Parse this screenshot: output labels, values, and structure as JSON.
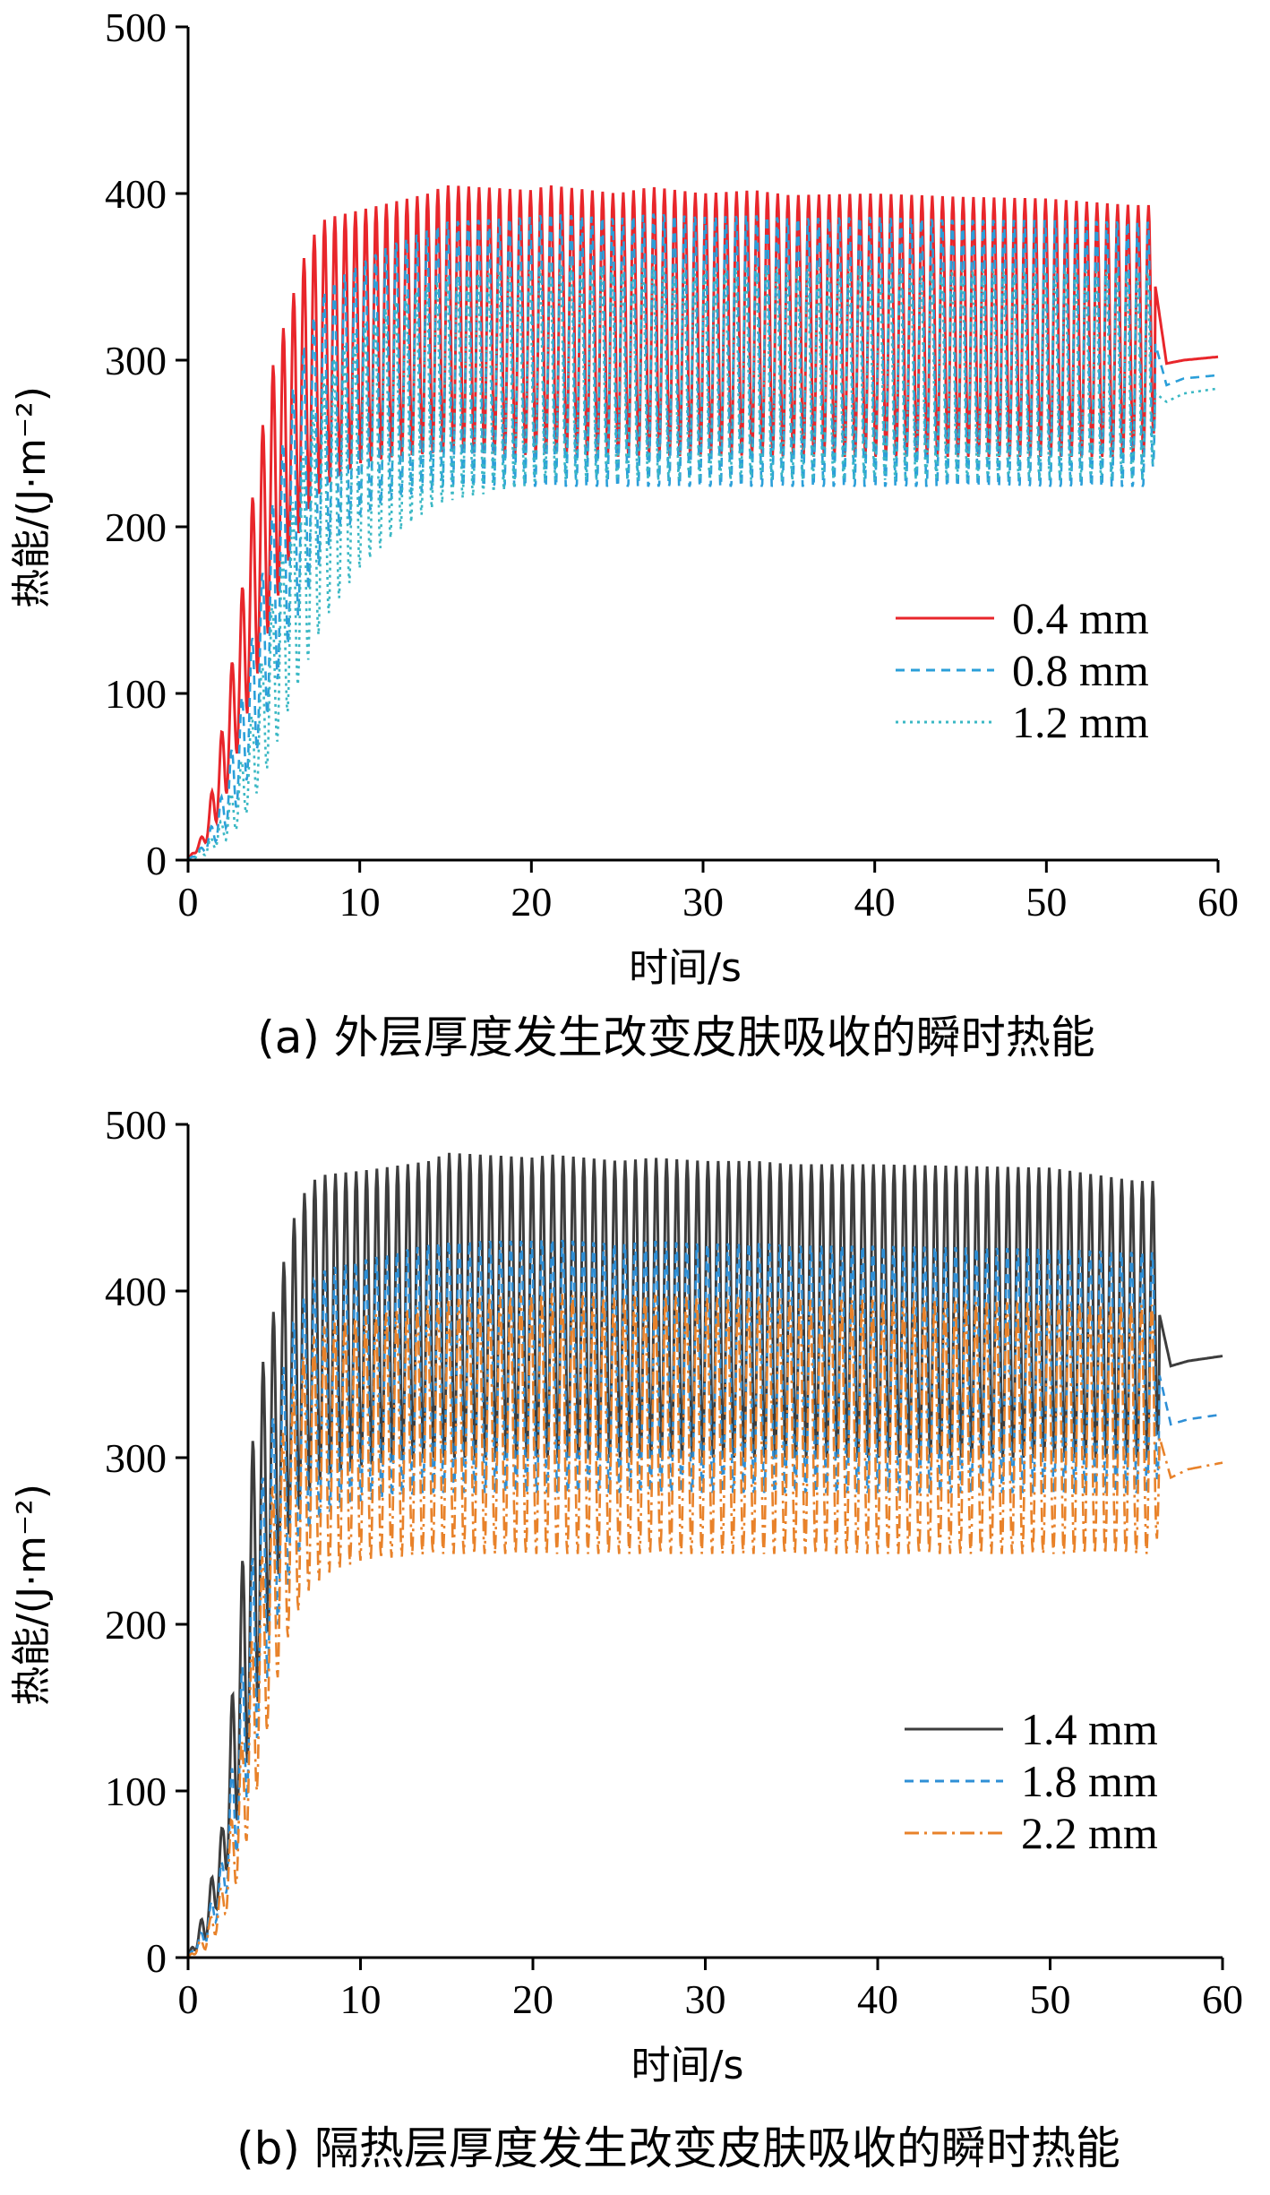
{
  "chart_data": [
    {
      "type": "line",
      "caption": "(a) 外层厚度发生改变皮肤吸收的瞬时热能",
      "xlabel": "时间/s",
      "ylabel": "热能/(J·m⁻²)",
      "xlim": [
        0,
        60
      ],
      "ylim": [
        0,
        500
      ],
      "xticks": [
        "0",
        "10",
        "20",
        "30",
        "40",
        "50",
        "60"
      ],
      "yticks": [
        "0",
        "100",
        "200",
        "300",
        "400",
        "500"
      ],
      "legend_position": "right-middle",
      "x": [
        0,
        1,
        2,
        3,
        4,
        5,
        6,
        7,
        8,
        10,
        12,
        14,
        15,
        20,
        21,
        25,
        27,
        30,
        33,
        35,
        40,
        45,
        50,
        55,
        56,
        57,
        58,
        60
      ],
      "series": [
        {
          "name": "0.4 mm",
          "color": "#e8262b",
          "dash": "solid",
          "values": [
            0,
            15,
            50,
            110,
            180,
            240,
            290,
            330,
            355,
            365,
            370,
            375,
            378,
            375,
            376,
            373,
            374,
            372,
            372,
            371,
            371,
            370,
            370,
            369,
            369,
            298,
            300,
            302
          ],
          "lower": [
            0,
            10,
            30,
            70,
            110,
            150,
            185,
            210,
            225,
            238,
            242,
            244,
            245,
            243,
            244,
            242,
            243,
            242,
            243,
            242,
            242,
            242,
            242,
            242,
            242,
            298,
            300,
            302
          ],
          "upper": [
            0,
            18,
            80,
            150,
            240,
            300,
            335,
            370,
            385,
            390,
            395,
            400,
            405,
            402,
            405,
            400,
            404,
            400,
            402,
            399,
            400,
            398,
            397,
            393,
            393,
            298,
            300,
            302
          ]
        },
        {
          "name": "0.8 mm",
          "color": "#2b9fd9",
          "dash": "10,7",
          "values": [
            0,
            8,
            25,
            60,
            110,
            170,
            215,
            250,
            280,
            305,
            318,
            322,
            325,
            325,
            326,
            325,
            326,
            325,
            325,
            324,
            324,
            324,
            323,
            323,
            323,
            285,
            289,
            291
          ],
          "lower": [
            0,
            5,
            15,
            35,
            65,
            100,
            135,
            160,
            185,
            205,
            215,
            220,
            222,
            222,
            222,
            222,
            222,
            222,
            222,
            222,
            222,
            222,
            222,
            222,
            222,
            285,
            289,
            291
          ],
          "upper": [
            0,
            10,
            40,
            90,
            150,
            220,
            280,
            320,
            345,
            360,
            372,
            380,
            385,
            388,
            390,
            387,
            390,
            388,
            389,
            387,
            388,
            386,
            386,
            385,
            385,
            285,
            289,
            291
          ]
        },
        {
          "name": "1.2 mm",
          "color": "#3bb8c4",
          "dash": "3,5",
          "values": [
            0,
            5,
            15,
            35,
            70,
            110,
            150,
            185,
            215,
            250,
            270,
            280,
            283,
            285,
            286,
            285,
            286,
            285,
            285,
            284,
            284,
            284,
            283,
            283,
            283,
            275,
            280,
            283
          ],
          "lower": [
            0,
            3,
            10,
            20,
            40,
            65,
            95,
            120,
            145,
            175,
            195,
            210,
            215,
            225,
            228,
            228,
            228,
            228,
            228,
            228,
            228,
            228,
            228,
            228,
            228,
            275,
            280,
            283
          ],
          "upper": [
            0,
            8,
            25,
            55,
            100,
            160,
            210,
            260,
            295,
            320,
            335,
            345,
            350,
            355,
            358,
            355,
            357,
            355,
            356,
            355,
            355,
            354,
            354,
            353,
            353,
            275,
            280,
            283
          ]
        }
      ]
    },
    {
      "type": "line",
      "caption": "(b) 隔热层厚度发生改变皮肤吸收的瞬时热能",
      "xlabel": "时间/s",
      "ylabel": "热能/(J·m⁻²)",
      "xlim": [
        0,
        60
      ],
      "ylim": [
        0,
        500
      ],
      "xticks": [
        "0",
        "10",
        "20",
        "30",
        "40",
        "50",
        "60"
      ],
      "yticks": [
        "0",
        "100",
        "200",
        "300",
        "400",
        "500"
      ],
      "legend_position": "right-bottom",
      "x": [
        0,
        1,
        2,
        3,
        4,
        5,
        6,
        7,
        8,
        10,
        12,
        14,
        15,
        20,
        21,
        25,
        27,
        30,
        33,
        35,
        40,
        45,
        50,
        55,
        56,
        57,
        58,
        60
      ],
      "series": [
        {
          "name": "1.4 mm",
          "color": "#3d3d3d",
          "dash": "solid",
          "values": [
            0,
            20,
            60,
            140,
            230,
            300,
            350,
            380,
            395,
            400,
            402,
            404,
            405,
            404,
            405,
            404,
            405,
            404,
            404,
            403,
            403,
            403,
            402,
            402,
            402,
            355,
            358,
            361
          ],
          "lower": [
            0,
            10,
            40,
            90,
            150,
            220,
            260,
            280,
            290,
            295,
            298,
            300,
            300,
            300,
            300,
            300,
            300,
            300,
            300,
            300,
            300,
            300,
            300,
            300,
            300,
            355,
            358,
            361
          ],
          "upper": [
            0,
            30,
            80,
            220,
            340,
            390,
            440,
            465,
            470,
            472,
            475,
            478,
            483,
            480,
            482,
            478,
            480,
            478,
            478,
            476,
            476,
            475,
            474,
            466,
            466,
            355,
            358,
            361
          ]
        },
        {
          "name": "1.8 mm",
          "color": "#2e8fd6",
          "dash": "10,7",
          "values": [
            0,
            15,
            45,
            110,
            190,
            260,
            310,
            340,
            355,
            362,
            365,
            367,
            368,
            368,
            368,
            367,
            368,
            367,
            367,
            366,
            366,
            366,
            365,
            365,
            365,
            320,
            323,
            326
          ],
          "lower": [
            0,
            8,
            30,
            70,
            130,
            190,
            230,
            255,
            265,
            272,
            275,
            277,
            277,
            277,
            277,
            277,
            277,
            277,
            277,
            277,
            277,
            277,
            277,
            277,
            277,
            320,
            323,
            326
          ],
          "upper": [
            0,
            20,
            60,
            160,
            270,
            330,
            380,
            405,
            415,
            420,
            425,
            430,
            432,
            432,
            433,
            430,
            432,
            430,
            431,
            429,
            429,
            428,
            427,
            425,
            425,
            320,
            323,
            326
          ]
        },
        {
          "name": "2.2 mm",
          "color": "#e8822a",
          "dash": "16,6,3,6",
          "values": [
            0,
            10,
            30,
            80,
            150,
            220,
            270,
            300,
            315,
            322,
            325,
            327,
            328,
            328,
            328,
            327,
            328,
            327,
            327,
            326,
            326,
            326,
            325,
            325,
            325,
            288,
            293,
            297
          ],
          "lower": [
            0,
            5,
            20,
            50,
            100,
            160,
            200,
            220,
            230,
            238,
            240,
            242,
            242,
            242,
            242,
            242,
            242,
            242,
            242,
            242,
            242,
            242,
            242,
            242,
            242,
            288,
            293,
            297
          ],
          "upper": [
            0,
            15,
            45,
            120,
            220,
            290,
            340,
            370,
            380,
            385,
            388,
            392,
            395,
            398,
            399,
            396,
            398,
            396,
            397,
            395,
            395,
            394,
            393,
            392,
            392,
            288,
            293,
            297
          ]
        }
      ]
    }
  ]
}
